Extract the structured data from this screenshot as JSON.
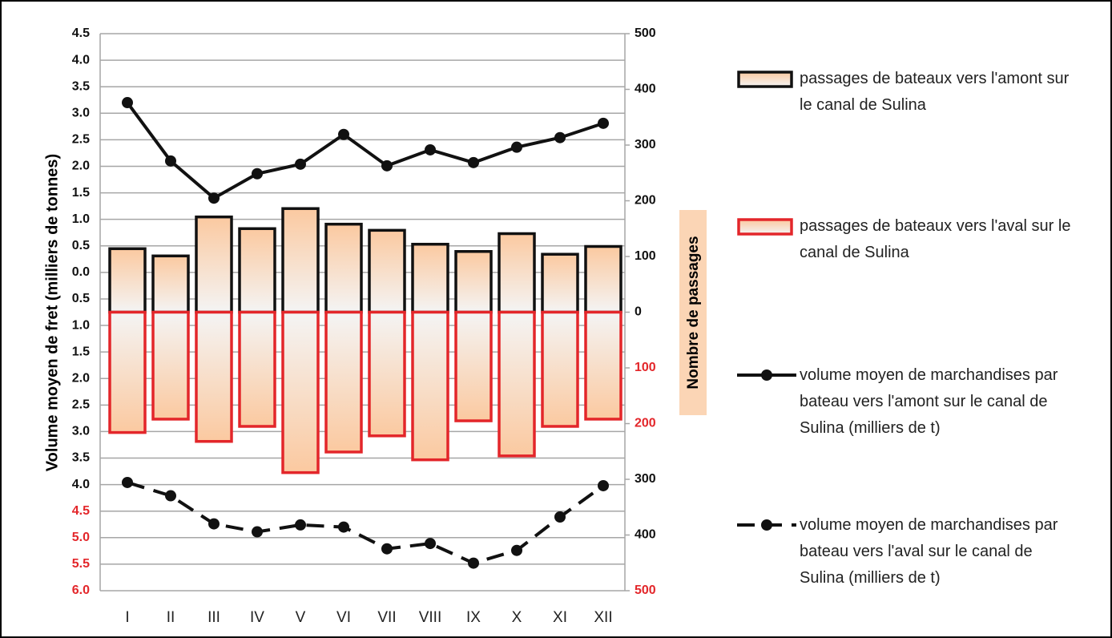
{
  "chart_data": {
    "type": "bar-line",
    "ylabel": "Volume moyen de fret (milliers de tonnes)",
    "y2label": "Nombre de passages",
    "categories": [
      "I",
      "II",
      "III",
      "IV",
      "V",
      "VI",
      "VII",
      "VIII",
      "IX",
      "X",
      "XI",
      "XII"
    ],
    "ylim": [
      -6,
      4.5
    ],
    "yticks": [
      4.5,
      {
        "value": 4,
        "label": "4.0"
      },
      3.5,
      {
        "value": 3,
        "label": "3.0"
      },
      2.5,
      {
        "value": 2,
        "label": "2.0"
      },
      1.5,
      {
        "value": 1,
        "label": "1.0"
      },
      0.5,
      {
        "value": 0,
        "label": "0.0"
      },
      {
        "value": -0.5,
        "label": "0.5"
      },
      {
        "value": -1,
        "label": "1.0"
      },
      {
        "value": -1.5,
        "label": "1.5"
      },
      {
        "value": -2,
        "label": "2.0"
      },
      {
        "value": -2.5,
        "label": "2.5"
      },
      {
        "value": -3,
        "label": "3.0"
      },
      {
        "value": -3.5,
        "label": "3.5"
      },
      {
        "value": -4,
        "label": "4.0"
      },
      {
        "value": -4.5,
        "label": "4.5",
        "color": "#e3262a"
      },
      {
        "value": -5,
        "label": "5.0",
        "color": "#e3262a"
      },
      {
        "value": -5.5,
        "label": "5.5",
        "color": "#e3262a"
      },
      {
        "value": -6,
        "label": "6.0",
        "color": "#e3262a"
      }
    ],
    "y2lim": [
      -500,
      500
    ],
    "y2ticks": [
      500,
      400,
      300,
      200,
      100,
      0,
      {
        "value": -100,
        "label": "100",
        "color": "#e3262a"
      },
      {
        "value": -200,
        "label": "200",
        "color": "#e3262a"
      },
      {
        "value": -300,
        "label": "300"
      },
      {
        "value": -400,
        "label": "400"
      },
      {
        "value": -500,
        "label": "500",
        "color": "#e3262a"
      }
    ],
    "grid": true,
    "series": [
      {
        "name": "passages de bateaux vers l'amont sur le canal de Sulina",
        "type": "bar",
        "axis": "y2",
        "color": "#111111",
        "values": [
          114,
          101,
          171,
          150,
          186,
          158,
          147,
          122,
          109,
          141,
          104,
          118
        ]
      },
      {
        "name": "passages de bateaux vers l'aval sur le canal de Sulina",
        "type": "bar",
        "axis": "y2",
        "color": "#e3262a",
        "values": [
          -216,
          -192,
          -232,
          -205,
          -288,
          -251,
          -222,
          -265,
          -195,
          -258,
          -205,
          -192
        ]
      },
      {
        "name": "volume moyen de marchandises par bateau vers l'amont sur le canal de Sulina (milliers de t)",
        "type": "line",
        "color": "#111111",
        "values": [
          3.2,
          2.1,
          1.4,
          1.86,
          2.04,
          2.6,
          2.01,
          2.31,
          2.07,
          2.36,
          2.54,
          2.81
        ]
      },
      {
        "name": "volume moyen de marchandises par bateau vers l'aval sur le canal de Sulina (milliers de t)",
        "type": "line",
        "dash": true,
        "color": "#111111",
        "values": [
          -3.96,
          -4.21,
          -4.74,
          -4.89,
          -4.76,
          -4.8,
          -5.21,
          -5.11,
          -5.48,
          -5.24,
          -4.61,
          -4.02
        ]
      }
    ]
  }
}
